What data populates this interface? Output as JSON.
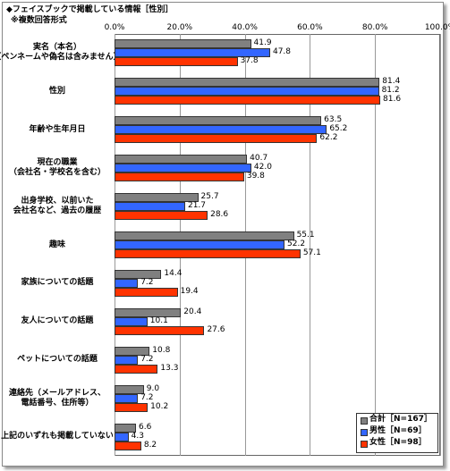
{
  "chart_data": {
    "type": "bar",
    "orientation": "horizontal",
    "title": "◆フェイスブックで掲載している情報［性別］",
    "subtitle": "※複数回答形式",
    "categories": [
      "実名（本名）\n（ペンネームや偽名は含みません）",
      "性別",
      "年齢や生年月日",
      "現在の職業\n（会社名・学校名を含む）",
      "出身学校、以前いた\n会社名など、過去の履歴",
      "趣味",
      "家族についての話題",
      "友人についての話題",
      "ペットについての話題",
      "連絡先（メールアドレス、\n電話番号、住所等）",
      "上記のいずれも掲載していない"
    ],
    "series": [
      {
        "name": "合計［N=167］",
        "color": "#808080",
        "values": [
          41.9,
          81.4,
          63.5,
          40.7,
          25.7,
          55.1,
          14.4,
          20.4,
          10.8,
          9.0,
          6.6
        ],
        "value_labels": [
          "41.9",
          "81.4",
          "63.5",
          "40.7",
          "25.7",
          "55.1",
          "14.4",
          "20.4",
          "10.8",
          "9.0",
          "6.6"
        ]
      },
      {
        "name": "男性［N=69］",
        "color": "#3366ff",
        "values": [
          47.8,
          81.2,
          65.2,
          42.0,
          21.7,
          52.2,
          7.2,
          10.1,
          7.2,
          7.2,
          4.3
        ],
        "value_labels": [
          "47.8",
          "81.2",
          "65.2",
          "42.0",
          "21.7",
          "52.2",
          "7.2",
          "10.1",
          "7.2",
          "7.2",
          "4.3"
        ]
      },
      {
        "name": "女性［N=98］",
        "color": "#ff3300",
        "values": [
          37.8,
          81.6,
          62.2,
          39.8,
          28.6,
          57.1,
          19.4,
          27.6,
          13.3,
          10.2,
          8.2
        ],
        "value_labels": [
          "37.8",
          "81.6",
          "62.2",
          "39.8",
          "28.6",
          "57.1",
          "19.4",
          "27.6",
          "13.3",
          "10.2",
          "8.2"
        ]
      }
    ],
    "xlim": [
      0,
      100
    ],
    "xticks": [
      {
        "value": 0,
        "label": "0.0%"
      },
      {
        "value": 20,
        "label": "20.0%"
      },
      {
        "value": 40,
        "label": "40.0%"
      },
      {
        "value": 60,
        "label": "60.0%"
      },
      {
        "value": 80,
        "label": "80.0%"
      },
      {
        "value": 100,
        "label": "100.0%"
      }
    ],
    "grid": true,
    "legend": "bottom-right"
  }
}
